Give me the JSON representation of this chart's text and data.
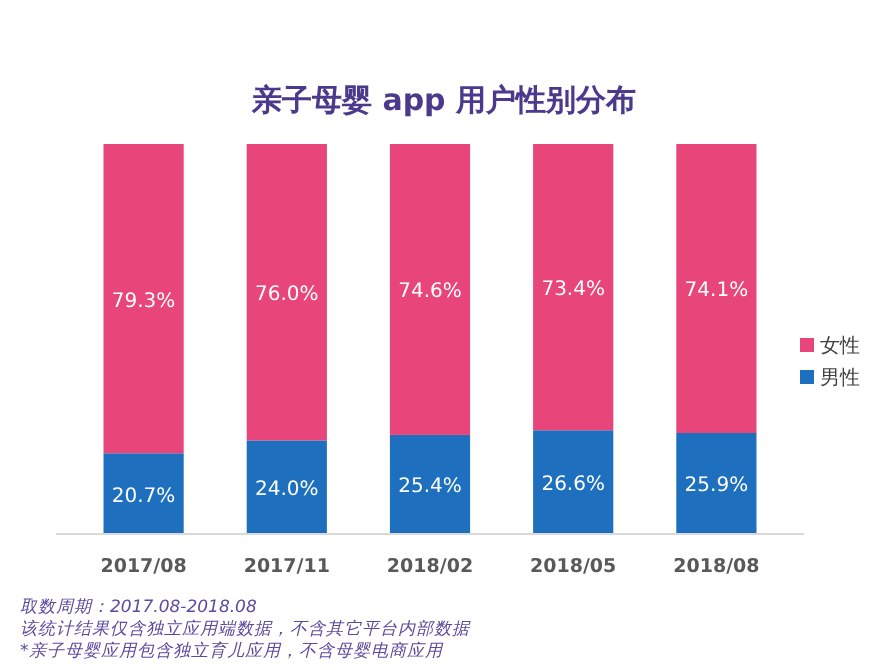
{
  "chart_data": {
    "type": "bar",
    "title": "亲子母婴 app 用户性别分布",
    "stacked": true,
    "legend": "right",
    "categories": [
      "2017/08",
      "2017/11",
      "2018/02",
      "2018/05",
      "2018/08"
    ],
    "series": [
      {
        "name": "男性",
        "color": "#1f6fbf",
        "values": [
          20.7,
          24.0,
          25.4,
          26.6,
          25.9
        ],
        "value_labels": [
          "20.7%",
          "24.0%",
          "25.4%",
          "26.6%",
          "25.9%"
        ]
      },
      {
        "name": "女性",
        "color": "#e8457a",
        "values": [
          79.3,
          76.0,
          74.6,
          73.4,
          74.1
        ],
        "value_labels": [
          "79.3%",
          "76.0%",
          "74.6%",
          "73.4%",
          "74.1%"
        ]
      }
    ],
    "annotations": [
      "取数周期：2017.08-2018.08",
      "该统计结果仅含独立应用端数据，不含其它平台内部数据",
      "*亲子母婴应用包含独立育儿应用，不含母婴电商应用"
    ]
  }
}
